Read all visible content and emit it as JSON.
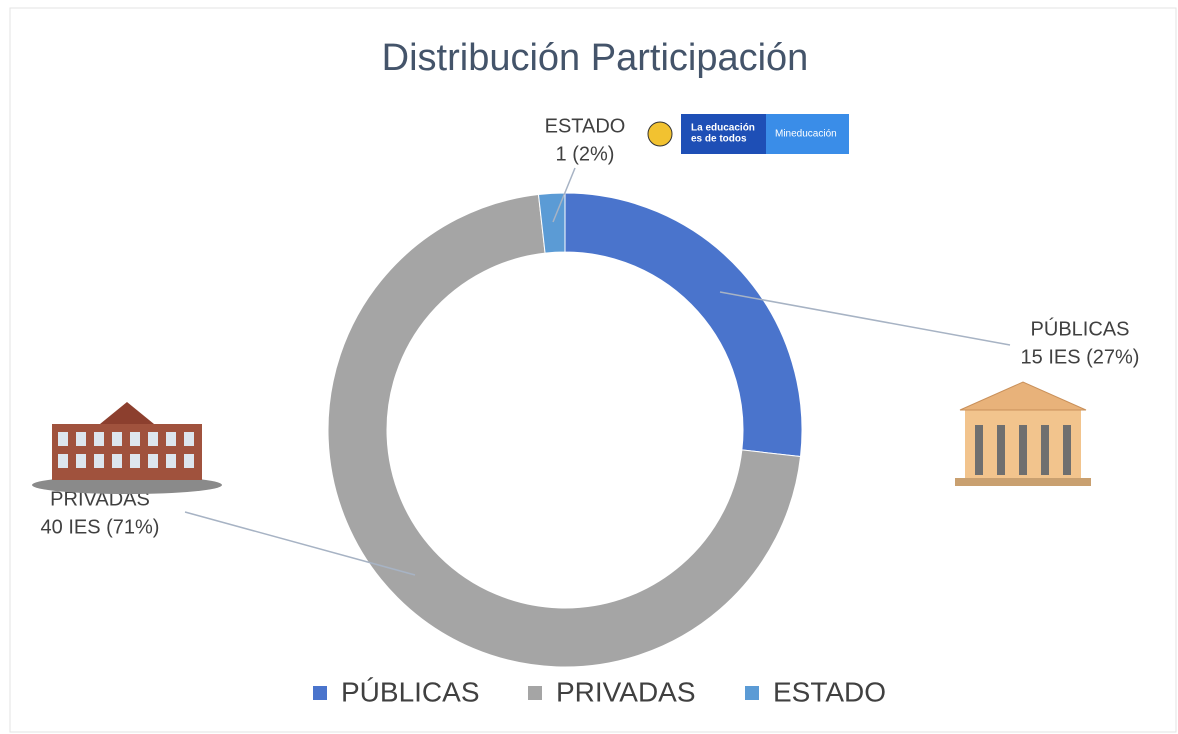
{
  "chart_data": {
    "type": "donut",
    "title": "Distribución Participación",
    "categories": [
      "PÚBLICAS",
      "PRIVADAS",
      "ESTADO"
    ],
    "values": [
      15,
      40,
      1
    ],
    "value_labels": [
      "15 IES (27%)",
      "40 IES (71%)",
      "1 (2%)"
    ],
    "colors": [
      "#4a74cc",
      "#a5a5a5",
      "#5b9bd5"
    ],
    "legend": "bottom"
  },
  "logo_text": [
    "La educación",
    "es de todos",
    "Mineducación"
  ]
}
